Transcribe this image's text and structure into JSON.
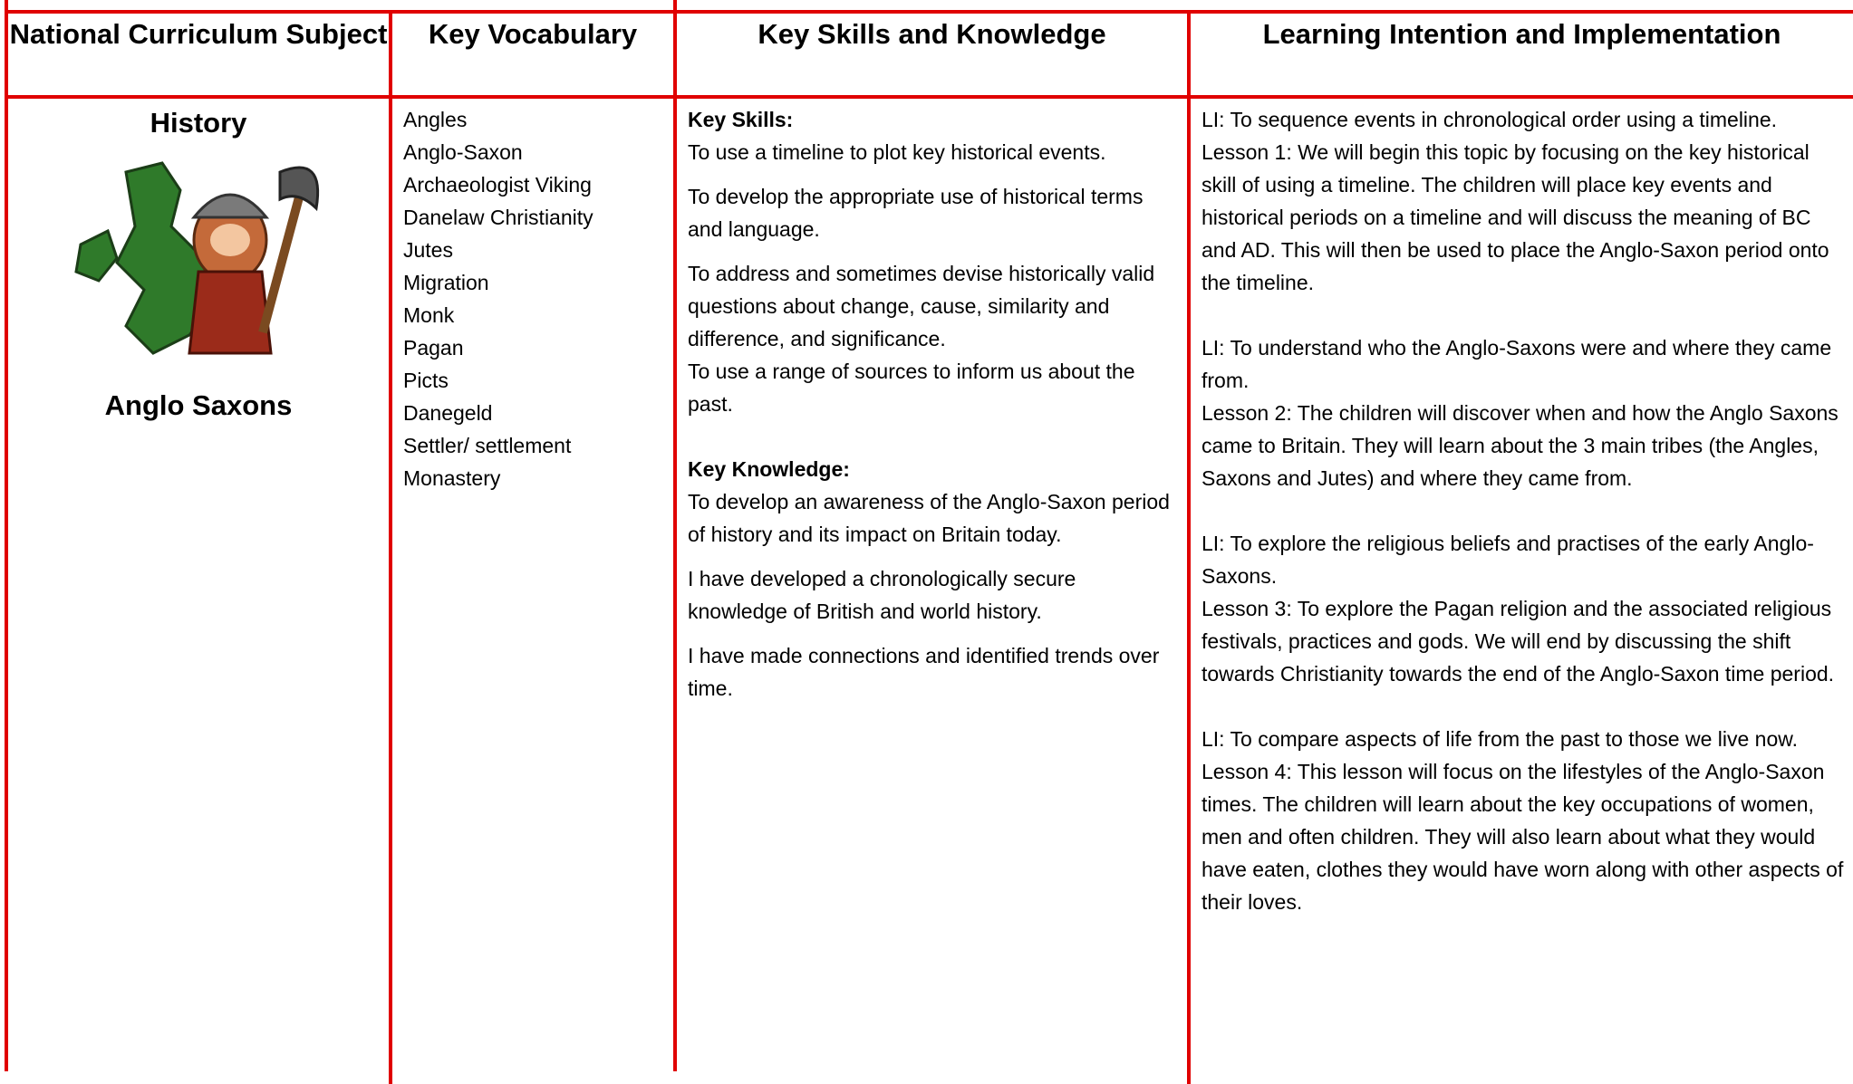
{
  "table": {
    "headers": [
      "National Curriculum Subject",
      "Key Vocabulary",
      "Key Skills and Knowledge",
      "Learning Intention and Implementation"
    ],
    "subject": {
      "title": "History",
      "topic": "Anglo Saxons"
    },
    "vocabulary": [
      "Angles",
      "Anglo-Saxon",
      "Archaeologist Viking",
      "Danelaw Christianity",
      "Jutes",
      "Migration",
      "Monk",
      "Pagan",
      "Picts",
      "Danegeld",
      "Settler/ settlement",
      "Monastery"
    ],
    "skills": {
      "heading": "Key Skills:",
      "items": [
        "To use a timeline to plot key historical events.",
        "To develop the appropriate use of historical terms and language.",
        "To address and sometimes devise historically valid questions about change, cause, similarity and difference, and significance.",
        "To use a range of sources to inform us about the past."
      ]
    },
    "knowledge": {
      "heading": "Key Knowledge:",
      "items": [
        "To develop an awareness of the Anglo-Saxon period of history and its impact on Britain today.",
        "I have developed a chronologically secure knowledge of British and world history.",
        "I have made connections and identified trends over time."
      ]
    },
    "lessons": [
      {
        "intention": "LI:  To sequence events in chronological order using a timeline.",
        "description": "Lesson 1: We will begin this topic by focusing on the key historical skill of using a timeline. The children will place key events and historical periods on a timeline and will discuss the meaning of BC and AD. This will then be used to place the Anglo-Saxon period onto the timeline."
      },
      {
        "intention": "LI: To understand who the Anglo-Saxons were and where they came from.",
        "description": "Lesson 2: The children will discover when and how the Anglo Saxons came to Britain. They will learn about the 3 main tribes (the Angles, Saxons and Jutes) and where they came from."
      },
      {
        "intention": "LI: To explore the religious beliefs and practises of the early Anglo-Saxons.",
        "description": "Lesson 3: To explore the Pagan religion and the associated religious festivals, practices and gods. We will end by discussing the shift towards Christianity towards the end of the Anglo-Saxon time period."
      },
      {
        "intention": "LI: To compare aspects of life from the past to those we live now.",
        "description": "Lesson 4: This lesson will focus on the lifestyles of the Anglo-Saxon times. The children will learn about the key occupations of women, men and often children. They will also learn about what they would have eaten, clothes they would have worn along with other aspects of their loves."
      }
    ]
  }
}
